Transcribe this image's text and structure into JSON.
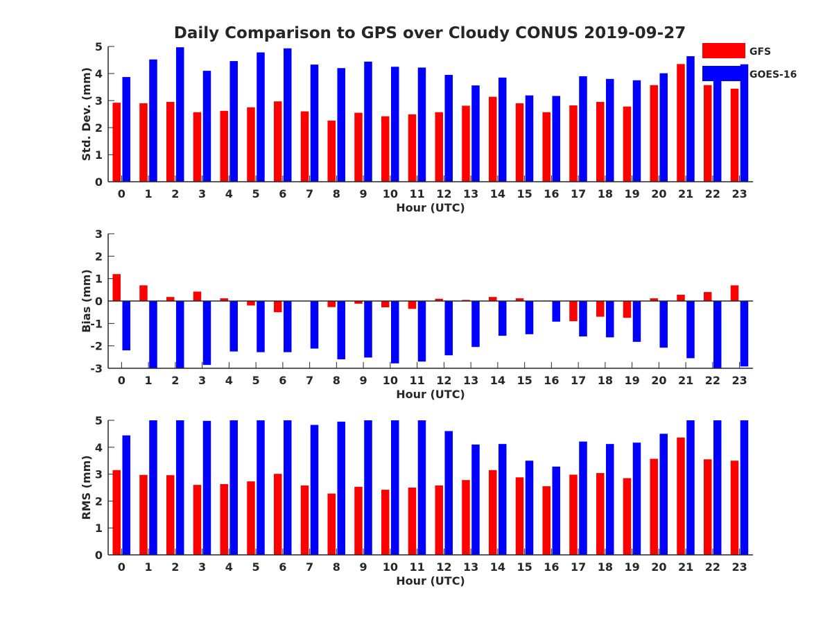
{
  "title": "Daily Comparison to GPS over Cloudy CONUS 2019-09-27",
  "legend": [
    {
      "name": "GFS",
      "color": "#ff0000"
    },
    {
      "name": "GOES-16",
      "color": "#0000ff"
    }
  ],
  "chart_data": [
    {
      "type": "bar",
      "ylabel": "Std. Dev. (mm)",
      "xlabel": "Hour (UTC)",
      "ylim": [
        0,
        5
      ],
      "yticks": [
        0,
        1,
        2,
        3,
        4,
        5
      ],
      "categories": [
        "0",
        "1",
        "2",
        "3",
        "4",
        "5",
        "6",
        "7",
        "8",
        "9",
        "10",
        "11",
        "12",
        "13",
        "14",
        "15",
        "16",
        "17",
        "18",
        "19",
        "20",
        "21",
        "22",
        "23"
      ],
      "series": [
        {
          "name": "GFS",
          "color": "#ff0000",
          "values": [
            2.92,
            2.9,
            2.95,
            2.57,
            2.62,
            2.75,
            2.97,
            2.6,
            2.26,
            2.55,
            2.42,
            2.49,
            2.57,
            2.81,
            3.14,
            2.9,
            2.57,
            2.82,
            2.95,
            2.78,
            3.57,
            4.35,
            3.57,
            3.44
          ]
        },
        {
          "name": "GOES-16",
          "color": "#0000ff",
          "values": [
            3.87,
            4.52,
            4.97,
            4.1,
            4.46,
            4.78,
            4.93,
            4.33,
            4.2,
            4.44,
            4.25,
            4.22,
            3.95,
            3.56,
            3.85,
            3.19,
            3.17,
            3.9,
            3.8,
            3.75,
            4.01,
            4.64,
            3.98,
            4.34
          ]
        }
      ]
    },
    {
      "type": "bar",
      "ylabel": "Bias (mm)",
      "xlabel": "Hour (UTC)",
      "ylim": [
        -3,
        3
      ],
      "yticks": [
        -3,
        -2,
        -1,
        0,
        1,
        2,
        3
      ],
      "categories": [
        "0",
        "1",
        "2",
        "3",
        "4",
        "5",
        "6",
        "7",
        "8",
        "9",
        "10",
        "11",
        "12",
        "13",
        "14",
        "15",
        "16",
        "17",
        "18",
        "19",
        "20",
        "21",
        "22",
        "23"
      ],
      "series": [
        {
          "name": "GFS",
          "color": "#ff0000",
          "values": [
            1.2,
            0.7,
            0.18,
            0.42,
            0.12,
            -0.2,
            -0.5,
            0.0,
            -0.27,
            -0.12,
            -0.28,
            -0.35,
            0.1,
            0.05,
            0.18,
            0.12,
            0.02,
            -0.9,
            -0.7,
            -0.75,
            0.12,
            0.28,
            0.4,
            0.7
          ]
        },
        {
          "name": "GOES-16",
          "color": "#0000ff",
          "values": [
            -2.2,
            -3.0,
            -3.0,
            -2.85,
            -2.25,
            -2.28,
            -2.28,
            -2.12,
            -2.6,
            -2.52,
            -2.78,
            -2.7,
            -2.42,
            -2.05,
            -1.55,
            -1.48,
            -0.92,
            -1.58,
            -1.62,
            -1.82,
            -2.08,
            -2.55,
            -3.0,
            -2.92
          ]
        }
      ]
    },
    {
      "type": "bar",
      "ylabel": "RMS (mm)",
      "xlabel": "Hour (UTC)",
      "ylim": [
        0,
        5
      ],
      "yticks": [
        0,
        1,
        2,
        3,
        4,
        5
      ],
      "categories": [
        "0",
        "1",
        "2",
        "3",
        "4",
        "5",
        "6",
        "7",
        "8",
        "9",
        "10",
        "11",
        "12",
        "13",
        "14",
        "15",
        "16",
        "17",
        "18",
        "19",
        "20",
        "21",
        "22",
        "23"
      ],
      "series": [
        {
          "name": "GFS",
          "color": "#ff0000",
          "values": [
            3.15,
            2.97,
            2.96,
            2.6,
            2.63,
            2.73,
            3.01,
            2.58,
            2.28,
            2.53,
            2.42,
            2.5,
            2.58,
            2.78,
            3.15,
            2.88,
            2.55,
            2.98,
            3.04,
            2.85,
            3.57,
            4.36,
            3.55,
            3.5
          ]
        },
        {
          "name": "GOES-16",
          "color": "#0000ff",
          "values": [
            4.44,
            5.0,
            5.0,
            4.98,
            5.0,
            5.0,
            5.0,
            4.83,
            4.95,
            5.0,
            5.0,
            5.0,
            4.6,
            4.1,
            4.12,
            3.5,
            3.28,
            4.21,
            4.12,
            4.17,
            4.5,
            5.0,
            5.0,
            5.0
          ]
        }
      ]
    }
  ]
}
